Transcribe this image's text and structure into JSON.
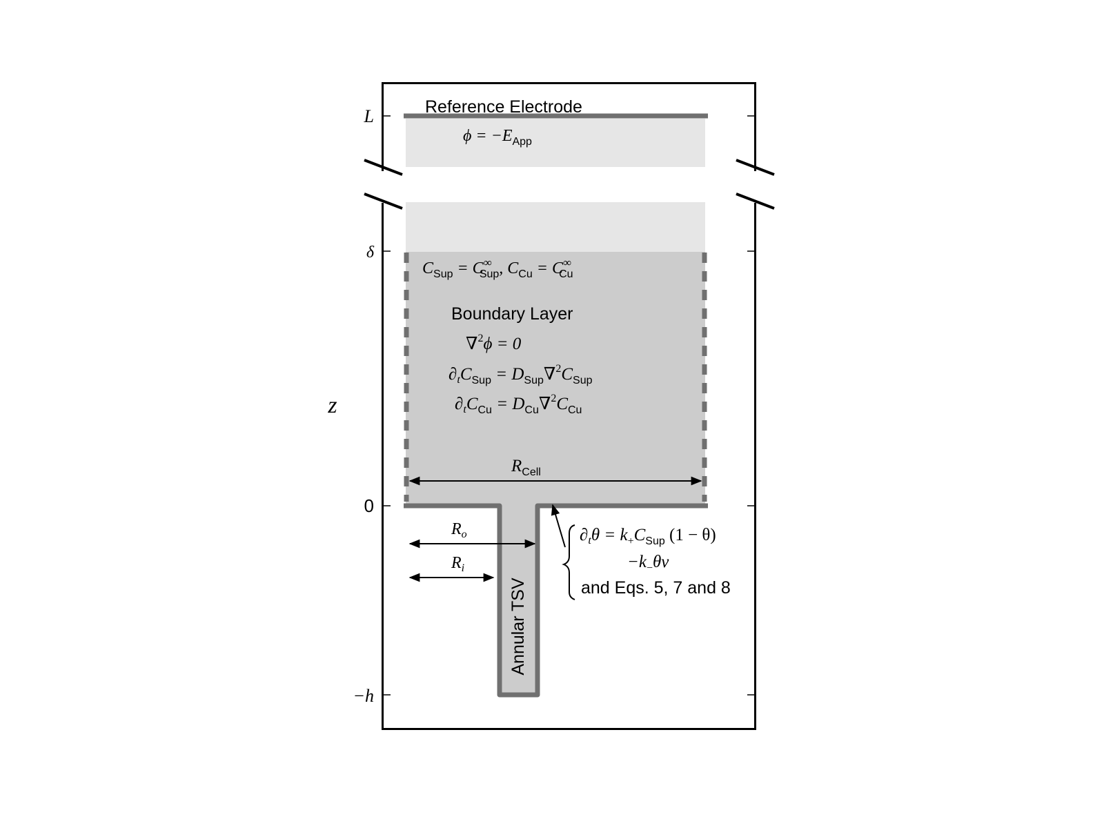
{
  "colors": {
    "reservoir_fill": "#e6e6e6",
    "boundary_layer_fill": "#cccccc",
    "electrode_wall": "#707070",
    "frame": "#000000",
    "background": "#ffffff"
  },
  "axis": {
    "label": "z",
    "ticks": {
      "L": "L",
      "delta": "δ",
      "zero": "0",
      "minus_h": "−h"
    }
  },
  "reference_electrode": {
    "label": "Reference Electrode",
    "eq_lhs": "ϕ = −E",
    "eq_sub": "App"
  },
  "bulk_condition": {
    "c1": "C",
    "c1_sub": "Sup",
    "eq1": " = C",
    "eq1_sup": "∞",
    "eq1_sub": "Sup",
    "c2": ", C",
    "c2_sub": "Cu",
    "eq2": " = C",
    "eq2_sup": "∞",
    "eq2_sub": "Cu"
  },
  "boundary_layer": {
    "title": "Boundary Layer",
    "laplace": "∇",
    "laplace_sup": "2",
    "laplace_rest": "ϕ = 0",
    "eq_sup": {
      "lhs": "∂",
      "lhs_t": "t",
      "c": "C",
      "c_sub": "Sup",
      "eq": " = D",
      "d_sub": "Sup",
      "nabla": "∇",
      "nabla_sup": "2",
      "c2": "C",
      "c2_sub": "Sup"
    },
    "eq_cu": {
      "lhs": "∂",
      "lhs_t": "t",
      "c": "C",
      "c_sub": "Cu",
      "eq": " = D",
      "d_sub": "Cu",
      "nabla": "∇",
      "nabla_sup": "2",
      "c2": "C",
      "c2_sub": "Cu"
    }
  },
  "dimensions": {
    "r_cell": "R",
    "r_cell_sub": "Cell",
    "r_o": "R",
    "r_o_sub": "o",
    "r_i": "R",
    "r_i_sub": "i"
  },
  "tsv": {
    "label": "Annular TSV"
  },
  "surface_equations": {
    "line1_a": "∂",
    "line1_t": "t",
    "line1_b": "θ = k",
    "line1_plus": "+",
    "line1_c": "C",
    "line1_c_sub": "Sup",
    "line1_d": " (1 − θ)",
    "line2_a": "−k",
    "line2_minus": "−",
    "line2_b": "θv",
    "line3": "and Eqs. 5, 7 and 8"
  }
}
